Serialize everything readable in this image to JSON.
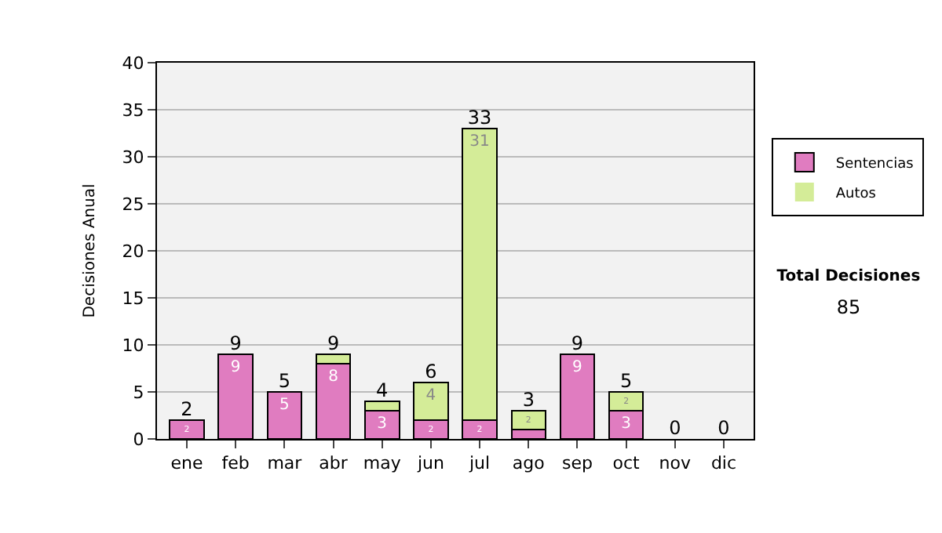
{
  "chart_data": {
    "type": "bar",
    "stacked": true,
    "ylabel": "Decisiones Anual",
    "categories": [
      "ene",
      "feb",
      "mar",
      "abr",
      "may",
      "jun",
      "jul",
      "ago",
      "sep",
      "oct",
      "nov",
      "dic"
    ],
    "series": [
      {
        "name": "Sentencias",
        "color": "#e07cc0",
        "values": [
          2,
          9,
          5,
          8,
          3,
          2,
          2,
          1,
          9,
          3,
          0,
          0
        ],
        "value_labels": [
          "2",
          "9",
          "5",
          "8",
          "3",
          "2",
          "2",
          null,
          "9",
          "3",
          null,
          null
        ]
      },
      {
        "name": "Autos",
        "color": "#d4ec98",
        "values": [
          0,
          0,
          0,
          1,
          1,
          4,
          31,
          2,
          0,
          2,
          0,
          0
        ],
        "value_labels": [
          null,
          null,
          null,
          null,
          null,
          "4",
          "31",
          "2",
          null,
          "2",
          null,
          null
        ]
      }
    ],
    "totals": [
      "2",
      "9",
      "5",
      "9",
      "4",
      "6",
      "33",
      "3",
      "9",
      "5",
      "0",
      "0"
    ],
    "ylim": [
      0,
      40
    ],
    "yticks": [
      0,
      5,
      10,
      15,
      20,
      25,
      30,
      35,
      40
    ],
    "grid": "y",
    "legend": "right",
    "annotations": [
      "Total Decisiones",
      "85"
    ]
  }
}
